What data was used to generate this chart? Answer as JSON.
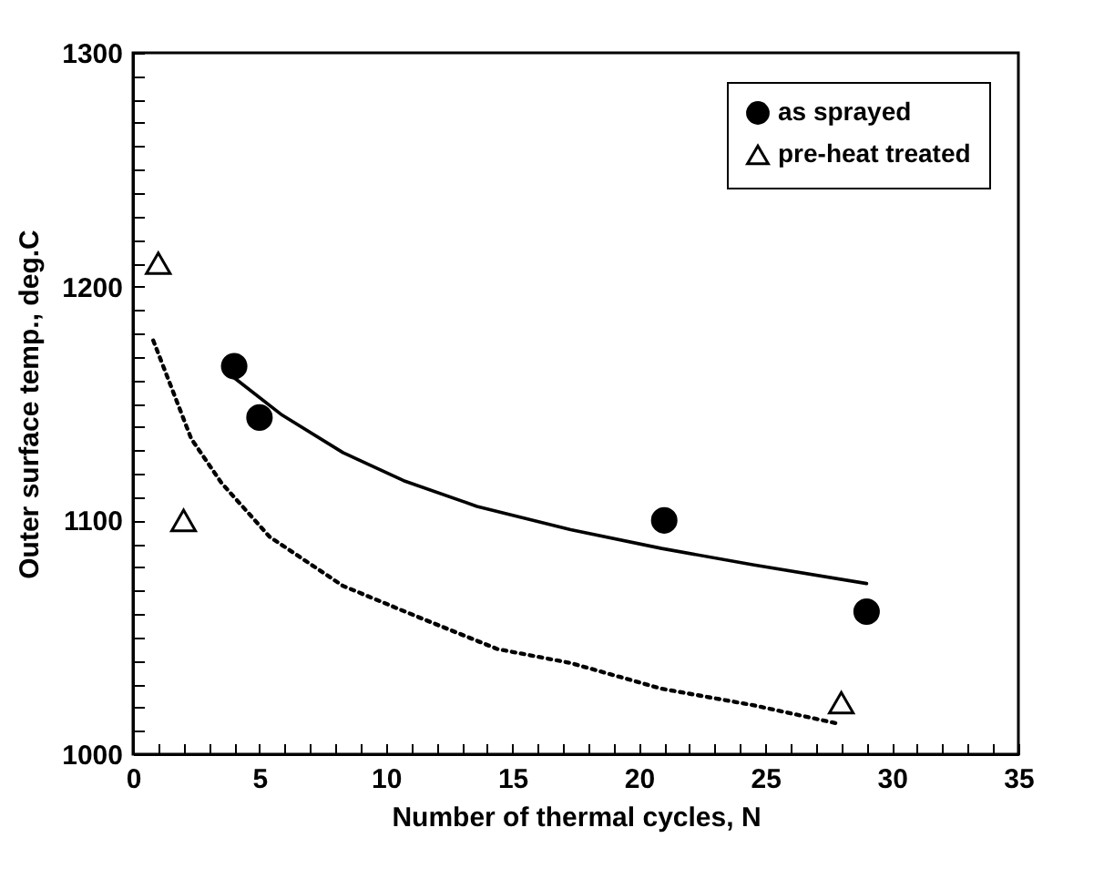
{
  "chart_data": {
    "type": "scatter",
    "xlabel": "Number of thermal cycles,  N",
    "ylabel": "Outer surface temp., deg.C",
    "xlim": [
      0,
      35
    ],
    "ylim": [
      1000,
      1300
    ],
    "xticks": [
      0,
      {
        "value": 1,
        "label": null
      },
      {
        "value": 2,
        "label": null
      },
      {
        "value": 3,
        "label": null
      },
      {
        "value": 4,
        "label": null
      },
      5,
      {
        "value": 6,
        "label": null
      },
      {
        "value": 7,
        "label": null
      },
      {
        "value": 8,
        "label": null
      },
      {
        "value": 9,
        "label": null
      },
      10,
      {
        "value": 11,
        "label": null
      },
      {
        "value": 12,
        "label": null
      },
      {
        "value": 13,
        "label": null
      },
      {
        "value": 14,
        "label": null
      },
      15,
      {
        "value": 16,
        "label": null
      },
      {
        "value": 17,
        "label": null
      },
      {
        "value": 18,
        "label": null
      },
      {
        "value": 19,
        "label": null
      },
      20,
      {
        "value": 21,
        "label": null
      },
      {
        "value": 22,
        "label": null
      },
      {
        "value": 23,
        "label": null
      },
      {
        "value": 24,
        "label": null
      },
      25,
      {
        "value": 26,
        "label": null
      },
      {
        "value": 27,
        "label": null
      },
      {
        "value": 28,
        "label": null
      },
      {
        "value": 29,
        "label": null
      },
      30,
      {
        "value": 31,
        "label": null
      },
      {
        "value": 32,
        "label": null
      },
      {
        "value": 33,
        "label": null
      },
      {
        "value": 34,
        "label": null
      },
      35
    ],
    "yticks": [
      1000,
      {
        "value": 1010,
        "label": null
      },
      {
        "value": 1020,
        "label": null
      },
      {
        "value": 1030,
        "label": null
      },
      {
        "value": 1040,
        "label": null
      },
      {
        "value": 1050,
        "label": null
      },
      {
        "value": 1060,
        "label": null
      },
      {
        "value": 1070,
        "label": null
      },
      {
        "value": 1080,
        "label": null
      },
      {
        "value": 1090,
        "label": null
      },
      1100,
      {
        "value": 1110,
        "label": null
      },
      {
        "value": 1120,
        "label": null
      },
      {
        "value": 1130,
        "label": null
      },
      {
        "value": 1140,
        "label": null
      },
      {
        "value": 1150,
        "label": null
      },
      {
        "value": 1160,
        "label": null
      },
      {
        "value": 1170,
        "label": null
      },
      {
        "value": 1180,
        "label": null
      },
      {
        "value": 1190,
        "label": null
      },
      1200,
      {
        "value": 1210,
        "label": null
      },
      {
        "value": 1220,
        "label": null
      },
      {
        "value": 1230,
        "label": null
      },
      {
        "value": 1240,
        "label": null
      },
      {
        "value": 1250,
        "label": null
      },
      {
        "value": 1260,
        "label": null
      },
      {
        "value": 1270,
        "label": null
      },
      {
        "value": 1280,
        "label": null
      },
      {
        "value": 1290,
        "label": null
      },
      1300
    ],
    "grid": false,
    "legend": "top right",
    "series": [
      {
        "name": "as sprayed",
        "type": "scatter",
        "marker": "circle",
        "color": "#000000",
        "x": [
          4,
          5,
          21,
          29
        ],
        "values": [
          1166,
          1144,
          1100,
          1061
        ]
      },
      {
        "type": "line",
        "line_style": "solid",
        "color": "#000000",
        "x": [
          4,
          5.9,
          8.3,
          10.7,
          13.6,
          17.3,
          20.9,
          24.5,
          29
        ],
        "values": [
          1161,
          1145,
          1129,
          1117,
          1106,
          1096,
          1088,
          1081,
          1073
        ]
      },
      {
        "name": "pre-heat treated",
        "type": "scatter",
        "marker": "triangle",
        "color": "#000000",
        "x": [
          1,
          2,
          28
        ],
        "values": [
          1210,
          1100,
          1022
        ]
      },
      {
        "type": "line",
        "line_style": "dotted",
        "color": "#000000",
        "x": [
          0.8,
          2.3,
          3.5,
          5.4,
          8.3,
          11.2,
          14.4,
          17.3,
          20.9,
          24.5,
          27.9
        ],
        "values": [
          1177,
          1135,
          1116,
          1093,
          1072,
          1059,
          1045,
          1039,
          1028,
          1021,
          1013
        ]
      }
    ]
  }
}
